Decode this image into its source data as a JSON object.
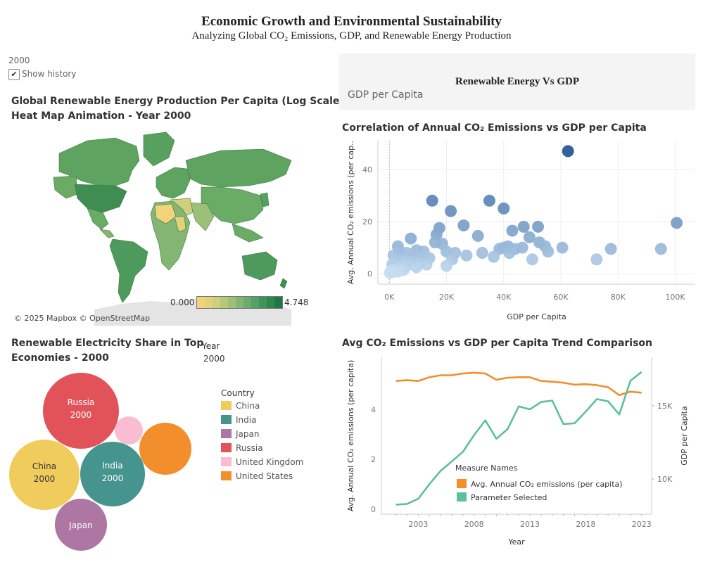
{
  "header": {
    "title": "Economic Growth and Environmental Sustainability",
    "subtitle": "Analyzing Global CO₂ Emissions, GDP, and Renewable Energy Production"
  },
  "map_panel": {
    "year_value": "2000",
    "show_history_label": "Show history",
    "show_history_checked": true,
    "title_line1": "Global Renewable Energy Production Per Capita (Log Scale) -",
    "title_line2": "Heat Map Animation - Year 2000",
    "legend_min": "0.000",
    "legend_max": "4.748",
    "legend_colors": [
      "#f2d37a",
      "#e2d27c",
      "#cfd07d",
      "#b5c77a",
      "#9cc078",
      "#83b673",
      "#6aac6c",
      "#55a064",
      "#40935b",
      "#2d8550",
      "#1f7744"
    ],
    "attribution": "© 2025 Mapbox © OpenStreetMap"
  },
  "param_panel": {
    "title": "Renewable Energy Vs GDP",
    "value": "GDP per Capita"
  },
  "bubble_panel": {
    "title_line1": "Renewable Electricity Share in Top",
    "title_line2": "Economies - 2000",
    "year_header": "Year",
    "year_value": "2000",
    "legend_title": "Country",
    "legend": [
      {
        "name": "China",
        "color": "#f0cc5c"
      },
      {
        "name": "India",
        "color": "#45948e"
      },
      {
        "name": "Japan",
        "color": "#ad76a3"
      },
      {
        "name": "Russia",
        "color": "#e15259"
      },
      {
        "name": "United Kingdom",
        "color": "#f9bcd0"
      },
      {
        "name": "United States",
        "color": "#f28e2b"
      }
    ],
    "bubbles": [
      {
        "country": "Russia",
        "label": "Russia",
        "year": "2000",
        "color": "#e15259"
      },
      {
        "country": "United Kingdom",
        "label": "",
        "year": "",
        "color": "#f9bcd0"
      },
      {
        "country": "United States",
        "label": "",
        "year": "",
        "color": "#f28e2b"
      },
      {
        "country": "China",
        "label": "China",
        "year": "2000",
        "color": "#f0cc5c"
      },
      {
        "country": "India",
        "label": "India",
        "year": "2000",
        "color": "#45948e"
      },
      {
        "country": "Japan",
        "label": "Japan",
        "year": "",
        "color": "#ad76a3"
      }
    ]
  },
  "chart_data": [
    {
      "type": "scatter",
      "title": "Correlation of Annual CO₂ Emissions vs GDP per Capita",
      "xlabel": "GDP per Capita",
      "ylabel": "Avg. Annual CO₂ emissions (per cap..",
      "xlim": [
        -4000,
        107000
      ],
      "ylim": [
        -4,
        51
      ],
      "xticks": [
        0,
        20000,
        40000,
        60000,
        80000,
        100000
      ],
      "xtick_labels": [
        "0K",
        "20K",
        "40K",
        "60K",
        "80K",
        "100K"
      ],
      "yticks": [
        0,
        20,
        40
      ],
      "points": [
        [
          62500,
          47
        ],
        [
          15000,
          28
        ],
        [
          35000,
          28
        ],
        [
          40000,
          25
        ],
        [
          21500,
          24
        ],
        [
          100500,
          19.5
        ],
        [
          26000,
          18.5
        ],
        [
          47000,
          18
        ],
        [
          52000,
          18
        ],
        [
          17500,
          17.5
        ],
        [
          43000,
          16.5
        ],
        [
          31000,
          14.5
        ],
        [
          49000,
          14
        ],
        [
          7500,
          13.5
        ],
        [
          16500,
          15
        ],
        [
          52500,
          12
        ],
        [
          16000,
          12
        ],
        [
          18500,
          11.5
        ],
        [
          54500,
          10.5
        ],
        [
          3000,
          10.5
        ],
        [
          60500,
          10
        ],
        [
          41500,
          10.5
        ],
        [
          40000,
          10
        ],
        [
          38500,
          9.5
        ],
        [
          46500,
          10
        ],
        [
          44000,
          9.5
        ],
        [
          9500,
          9
        ],
        [
          12000,
          8.5
        ],
        [
          20000,
          8.5
        ],
        [
          23000,
          8
        ],
        [
          95000,
          9.5
        ],
        [
          77500,
          9.5
        ],
        [
          55500,
          8.5
        ],
        [
          42000,
          8
        ],
        [
          32500,
          8
        ],
        [
          27000,
          7
        ],
        [
          36500,
          6.5
        ],
        [
          6000,
          8
        ],
        [
          3500,
          8
        ],
        [
          1500,
          7
        ],
        [
          8500,
          7
        ],
        [
          11500,
          6.5
        ],
        [
          14000,
          6
        ],
        [
          50000,
          5.5
        ],
        [
          72500,
          5.5
        ],
        [
          22000,
          5.5
        ],
        [
          4500,
          5
        ],
        [
          2000,
          5
        ],
        [
          7000,
          4.5
        ],
        [
          10500,
          4
        ],
        [
          13000,
          3.5
        ],
        [
          20000,
          3
        ],
        [
          1000,
          3.5
        ],
        [
          6000,
          3
        ],
        [
          3500,
          2.5
        ],
        [
          9500,
          2.5
        ],
        [
          2500,
          1.5
        ],
        [
          5000,
          1.5
        ],
        [
          1500,
          1.5
        ],
        [
          3000,
          0.8
        ],
        [
          800,
          0.5
        ],
        [
          500,
          0.8
        ],
        [
          200,
          0.3
        ]
      ]
    },
    {
      "type": "line",
      "title": "Avg CO₂ Emissions vs GDP per Capita Trend Comparison",
      "xlabel": "Year",
      "ylabel_left": "Avg. Annual CO₂ emissions (per capita)",
      "ylabel_right": "GDP per Capita",
      "x": [
        2001,
        2002,
        2003,
        2004,
        2005,
        2006,
        2007,
        2008,
        2009,
        2010,
        2011,
        2012,
        2013,
        2014,
        2015,
        2016,
        2017,
        2018,
        2019,
        2020,
        2021,
        2022,
        2023
      ],
      "ylim_left": [
        -0.2,
        6.1
      ],
      "yticks_left": [
        0,
        2,
        4
      ],
      "ylim_right": [
        7600,
        18300
      ],
      "yticks_right": [
        10000,
        15000
      ],
      "ytick_labels_right": [
        "10K",
        "15K"
      ],
      "xticks": [
        2003,
        2008,
        2013,
        2018,
        2023
      ],
      "legend_title": "Measure Names",
      "series": [
        {
          "name": "Avg. Annual CO₂ emissions (per capita)",
          "axis": "left",
          "color": "#f28e2b",
          "values": [
            5.15,
            5.18,
            5.15,
            5.3,
            5.38,
            5.38,
            5.45,
            5.48,
            5.45,
            5.2,
            5.28,
            5.3,
            5.3,
            5.15,
            5.12,
            5.08,
            5.0,
            5.02,
            4.98,
            4.9,
            4.58,
            4.72,
            4.68
          ]
        },
        {
          "name": "Parameter Selected",
          "axis": "right",
          "color": "#5fbf9a",
          "values": [
            8250,
            8300,
            8650,
            9650,
            10550,
            11200,
            11850,
            13000,
            14000,
            12750,
            13400,
            14950,
            14750,
            15250,
            15350,
            13750,
            13800,
            14600,
            15450,
            15300,
            14400,
            16700,
            17300
          ]
        }
      ]
    }
  ]
}
